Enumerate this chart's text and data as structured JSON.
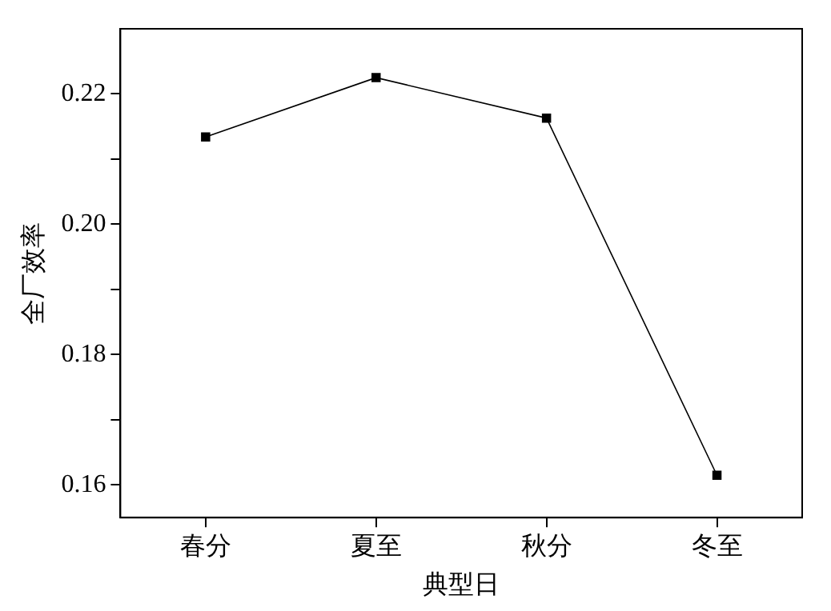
{
  "chart_data": {
    "type": "line",
    "xlabel": "典型日",
    "ylabel": "全厂效率",
    "categories": [
      "春分",
      "夏至",
      "秋分",
      "冬至"
    ],
    "series": [
      {
        "color": "#000000",
        "values": [
          0.2134,
          0.2225,
          0.2163,
          0.1615
        ]
      }
    ],
    "ylim": [
      0.155,
      0.23
    ],
    "yticks": [
      0.16,
      {
        "value": 0.17,
        "label": null
      },
      0.18,
      {
        "value": 0.19,
        "label": null
      },
      {
        "value": 0.2,
        "label": "0.20"
      },
      {
        "value": 0.21,
        "label": null
      },
      0.22
    ],
    "marker": "square",
    "line_style": "solid",
    "legend": false,
    "grid": false
  }
}
